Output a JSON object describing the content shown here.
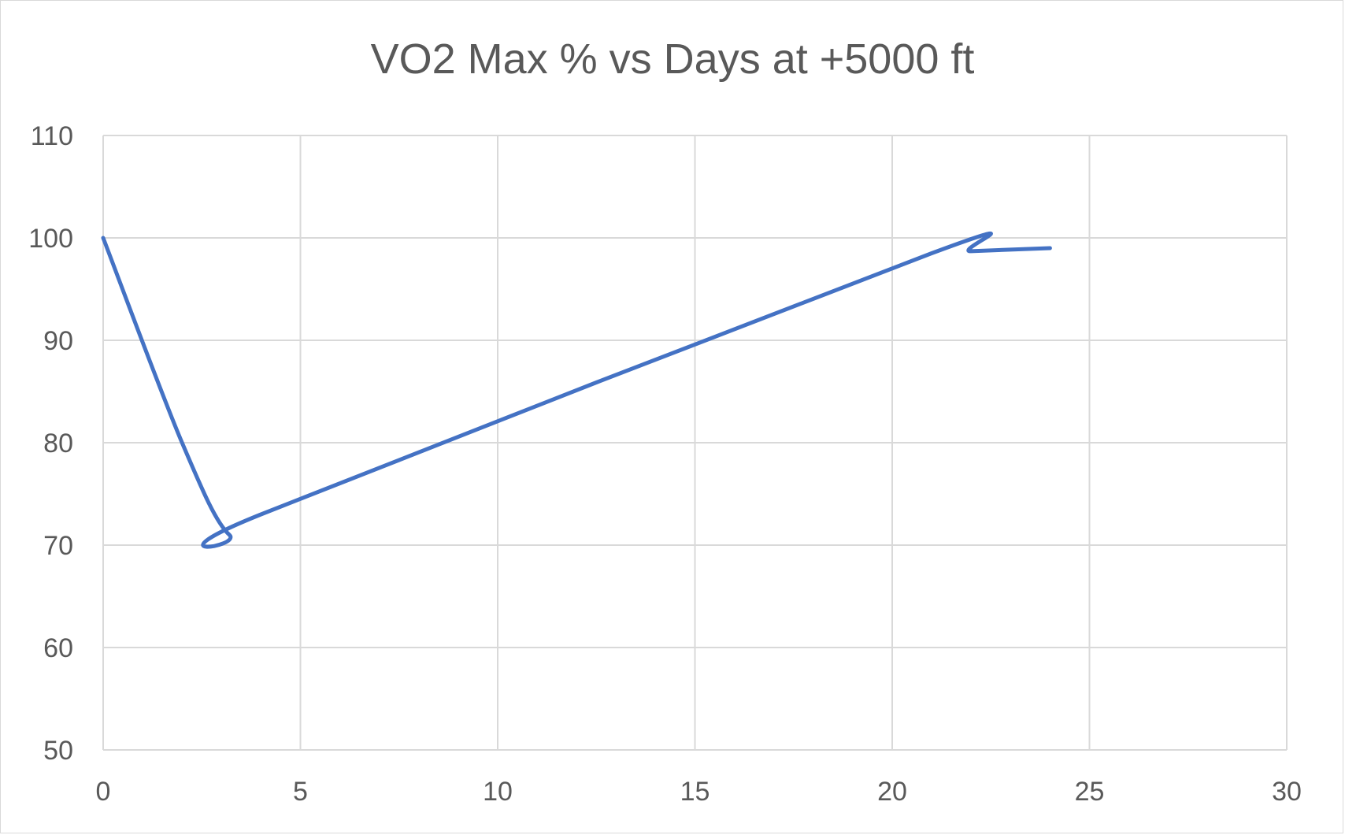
{
  "chart_data": {
    "type": "line",
    "title": "VO2 Max % vs Days at +5000 ft",
    "xlabel": "",
    "ylabel": "",
    "xlim": [
      0,
      30
    ],
    "ylim": [
      50,
      110
    ],
    "x_ticks": [
      0,
      5,
      10,
      15,
      20,
      25,
      30
    ],
    "y_ticks": [
      50,
      60,
      70,
      80,
      90,
      100,
      110
    ],
    "grid": true,
    "legend": "none",
    "smoothed": true,
    "series": [
      {
        "color": "#4472c4",
        "x": [
          0,
          2,
          3.2,
          4,
          21,
          22,
          24
        ],
        "y": [
          100,
          80,
          71,
          73,
          98.5,
          98.7,
          99
        ]
      }
    ]
  }
}
